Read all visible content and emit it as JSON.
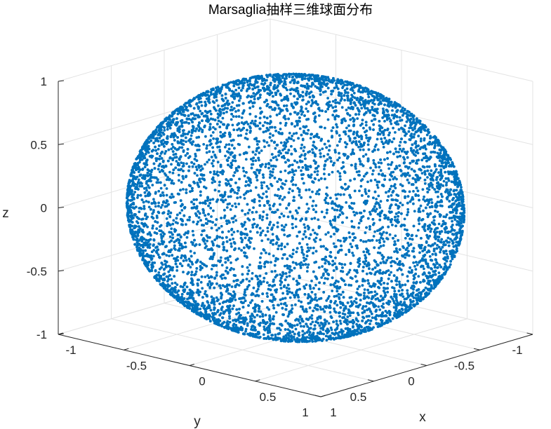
{
  "chart_data": {
    "type": "scatter",
    "title": "Marsaglia抽样三维球面分布",
    "xlabel": "x",
    "ylabel": "y",
    "zlabel": "z",
    "xlim": [
      -1,
      1
    ],
    "ylim": [
      -1,
      1
    ],
    "zlim": [
      -1,
      1
    ],
    "xticks": [
      -1,
      -0.5,
      0,
      0.5,
      1
    ],
    "yticks": [
      -1,
      -0.5,
      0,
      0.5,
      1
    ],
    "zticks": [
      -1,
      -0.5,
      0,
      0.5,
      1
    ],
    "xtick_labels": [
      "-1",
      "-0.5",
      "0",
      "0.5",
      "1"
    ],
    "ytick_labels": [
      "-1",
      "-0.5",
      "0",
      "0.5",
      "1"
    ],
    "ztick_labels": [
      "-1",
      "-0.5",
      "0",
      "0.5",
      "1"
    ],
    "grid": true,
    "view": "3d-default",
    "surface": "unit sphere",
    "radius": 1,
    "center": [
      0,
      0,
      0
    ],
    "point_count_approx": 10000,
    "marker_color": "#0072BD"
  }
}
